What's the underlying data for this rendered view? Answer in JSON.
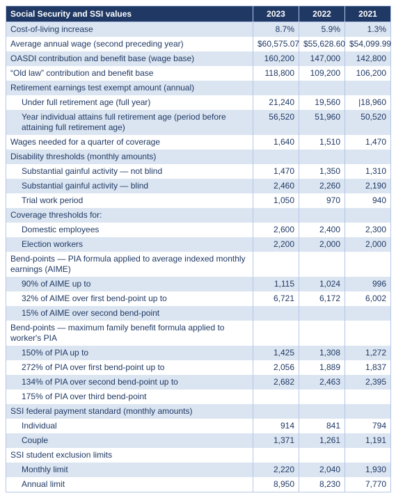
{
  "table": {
    "title": "Social Security and SSI values",
    "years": [
      "2023",
      "2022",
      "2021"
    ],
    "colors": {
      "header_bg": "#1f3864",
      "header_fg": "#ffffff",
      "text": "#1f3864",
      "stripe": "#dbe5f1",
      "plain": "#ffffff",
      "border": "#b4c6e7"
    },
    "rows": [
      {
        "label": "Cost-of-living increase",
        "indent": 0,
        "stripe": true,
        "v": [
          "8.7%",
          "5.9%",
          "1.3%"
        ]
      },
      {
        "label": "Average annual wage (second preceding year)",
        "indent": 0,
        "stripe": false,
        "v": [
          "$60,575.07",
          "$55,628.60",
          "$54,099.99"
        ]
      },
      {
        "label": "OASDI contribution and benefit base (wage base)",
        "indent": 0,
        "stripe": true,
        "v": [
          "160,200",
          "147,000",
          "142,800"
        ]
      },
      {
        "label": "“Old law” contribution and benefit base",
        "indent": 0,
        "stripe": false,
        "v": [
          "118,800",
          "109,200",
          "106,200"
        ]
      },
      {
        "label": "Retirement earnings test exempt amount (annual)",
        "indent": 0,
        "stripe": true,
        "v": [
          "",
          "",
          ""
        ]
      },
      {
        "label": "Under full retirement age (full year)",
        "indent": 1,
        "stripe": false,
        "v": [
          "21,240",
          "19,560",
          "|18,960"
        ]
      },
      {
        "label": "Year individual attains full retirement age (period before attaining full retirement age)",
        "indent": 1,
        "stripe": true,
        "v": [
          "56,520",
          "51,960",
          "50,520"
        ]
      },
      {
        "label": "Wages needed for a quarter of coverage",
        "indent": 0,
        "stripe": false,
        "v": [
          "1,640",
          "1,510",
          "1,470"
        ]
      },
      {
        "label": "Disability thresholds (monthly amounts)",
        "indent": 0,
        "stripe": true,
        "v": [
          "",
          "",
          ""
        ]
      },
      {
        "label": "Substantial gainful activity — not blind",
        "indent": 1,
        "stripe": false,
        "v": [
          "1,470",
          "1,350",
          "1,310"
        ]
      },
      {
        "label": "Substantial gainful activity — blind",
        "indent": 1,
        "stripe": true,
        "v": [
          "2,460",
          "2,260",
          "2,190"
        ]
      },
      {
        "label": "Trial work period",
        "indent": 1,
        "stripe": false,
        "v": [
          "1,050",
          "970",
          "940"
        ]
      },
      {
        "label": "Coverage thresholds for:",
        "indent": 0,
        "stripe": true,
        "v": [
          "",
          "",
          ""
        ]
      },
      {
        "label": "Domestic employees",
        "indent": 1,
        "stripe": false,
        "v": [
          "2,600",
          "2,400",
          "2,300"
        ]
      },
      {
        "label": "Election workers",
        "indent": 1,
        "stripe": true,
        "v": [
          "2,200",
          "2,000",
          "2,000"
        ]
      },
      {
        "label": "Bend-points — PIA formula applied to average indexed monthly earnings (AIME)",
        "indent": 0,
        "stripe": false,
        "v": [
          "",
          "",
          ""
        ]
      },
      {
        "label": "90% of AIME up to",
        "indent": 1,
        "stripe": true,
        "v": [
          "1,115",
          "1,024",
          "996"
        ]
      },
      {
        "label": "32% of AIME over first bend-point up to",
        "indent": 1,
        "stripe": false,
        "v": [
          "6,721",
          "6,172",
          "6,002"
        ]
      },
      {
        "label": "15% of AIME over second bend-point",
        "indent": 1,
        "stripe": true,
        "v": [
          "",
          "",
          ""
        ]
      },
      {
        "label": "Bend-points — maximum family benefit formula applied to worker's PIA",
        "indent": 0,
        "stripe": false,
        "v": [
          "",
          "",
          ""
        ]
      },
      {
        "label": "150% of PIA up to",
        "indent": 1,
        "stripe": true,
        "v": [
          "1,425",
          "1,308",
          "1,272"
        ]
      },
      {
        "label": "272% of PIA over first bend-point up to",
        "indent": 1,
        "stripe": false,
        "v": [
          "2,056",
          "1,889",
          "1,837"
        ]
      },
      {
        "label": "134% of PIA over second bend-point up to",
        "indent": 1,
        "stripe": true,
        "v": [
          "2,682",
          "2,463",
          "2,395"
        ]
      },
      {
        "label": "175% of PIA over third bend-point",
        "indent": 1,
        "stripe": false,
        "v": [
          "",
          "",
          ""
        ]
      },
      {
        "label": "SSI federal payment standard (monthly amounts)",
        "indent": 0,
        "stripe": true,
        "v": [
          "",
          "",
          ""
        ]
      },
      {
        "label": "Individual",
        "indent": 1,
        "stripe": false,
        "v": [
          "914",
          "841",
          "794"
        ]
      },
      {
        "label": "Couple",
        "indent": 1,
        "stripe": true,
        "v": [
          "1,371",
          "1,261",
          "1,191"
        ]
      },
      {
        "label": "SSI student exclusion limits",
        "indent": 0,
        "stripe": false,
        "v": [
          "",
          "",
          ""
        ]
      },
      {
        "label": "Monthly limit",
        "indent": 1,
        "stripe": true,
        "v": [
          "2,220",
          "2,040",
          "1,930"
        ]
      },
      {
        "label": "Annual limit",
        "indent": 1,
        "stripe": false,
        "v": [
          "8,950",
          "8,230",
          "7,770"
        ]
      }
    ]
  }
}
